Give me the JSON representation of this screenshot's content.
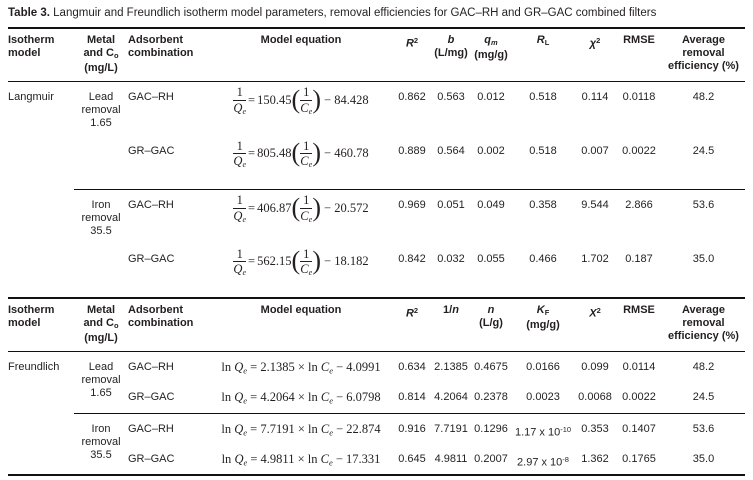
{
  "title": {
    "label": "Table 3.",
    "text": " Langmuir and Freundlich isotherm model parameters, removal efficiencies for GAC–RH and GR–GAC combined filters"
  },
  "shared": {
    "langmuir_eq": {
      "num": "1",
      "den_var": "Q",
      "den_sub": "e",
      "equals": "=",
      "open": "(",
      "inner_num": "1",
      "inner_var": "C",
      "inner_sub": "e",
      "close": ")"
    }
  },
  "langmuir": {
    "section_label": "Langmuir",
    "headers": {
      "isotherm": [
        {
          "t": "Isotherm"
        },
        {
          "v": "br"
        },
        {
          "t": "model"
        }
      ],
      "metal": [
        {
          "t": "Metal"
        },
        {
          "v": "br"
        },
        {
          "t": "and C"
        },
        {
          "t": "o",
          "v": "sub"
        },
        {
          "v": "br"
        },
        {
          "t": "(mg/L)"
        }
      ],
      "adsorbent": [
        {
          "t": "Adsorbent"
        },
        {
          "v": "br"
        },
        {
          "t": "combination"
        }
      ],
      "equation": [
        {
          "t": "Model equation"
        }
      ],
      "c5": [
        {
          "t": "R",
          "v": "i"
        },
        {
          "t": "2",
          "v": "sup"
        }
      ],
      "c6": [
        {
          "t": "b",
          "v": "i"
        },
        {
          "v": "br"
        },
        {
          "t": "(L/mg)"
        }
      ],
      "c7": [
        {
          "t": "q",
          "v": "i"
        },
        {
          "t": "m",
          "v": "isub"
        },
        {
          "v": "br"
        },
        {
          "t": "(mg/g)"
        }
      ],
      "c8": [
        {
          "t": "R",
          "v": "i"
        },
        {
          "t": "L",
          "v": "sub"
        }
      ],
      "c9": [
        {
          "t": "χ",
          "v": "i"
        },
        {
          "t": "2",
          "v": "sup"
        }
      ],
      "c10": [
        {
          "t": "RMSE"
        }
      ],
      "c11": [
        {
          "t": "Average"
        },
        {
          "v": "br"
        },
        {
          "t": "removal"
        },
        {
          "v": "br"
        },
        {
          "t": "efficiency (%)"
        }
      ]
    },
    "groups": [
      {
        "metal": [
          {
            "t": "Lead"
          },
          {
            "v": "br"
          },
          {
            "t": "removal"
          },
          {
            "v": "br"
          },
          {
            "t": "1.65"
          }
        ]
      },
      {
        "metal": [
          {
            "t": "Iron"
          },
          {
            "v": "br"
          },
          {
            "t": "removal"
          },
          {
            "v": "br"
          },
          {
            "t": "35.5"
          }
        ]
      }
    ],
    "rows": [
      {
        "adsorbent": "GAC–RH",
        "coef": "150.45",
        "tail": "− 84.428",
        "r2": "0.862",
        "b": "0.563",
        "qm": "0.012",
        "rl": "0.518",
        "chi2": "0.114",
        "rmse": "0.0118",
        "avg": "48.2"
      },
      {
        "adsorbent": "GR–GAC",
        "coef": "805.48",
        "tail": "− 460.78",
        "r2": "0.889",
        "b": "0.564",
        "qm": "0.002",
        "rl": "0.518",
        "chi2": "0.007",
        "rmse": "0.0022",
        "avg": "24.5"
      },
      {
        "adsorbent": "GAC–RH",
        "coef": "406.87",
        "tail": "− 20.572",
        "r2": "0.969",
        "b": "0.051",
        "qm": "0.049",
        "rl": "0.358",
        "chi2": "9.544",
        "rmse": "2.866",
        "avg": "53.6"
      },
      {
        "adsorbent": "GR–GAC",
        "coef": "562.15",
        "tail": "− 18.182",
        "r2": "0.842",
        "b": "0.032",
        "qm": "0.055",
        "rl": "0.466",
        "chi2": "1.702",
        "rmse": "0.187",
        "avg": "35.0"
      }
    ]
  },
  "freundlich": {
    "section_label": "Freundlich",
    "headers": {
      "isotherm": [
        {
          "t": "Isotherm"
        },
        {
          "v": "br"
        },
        {
          "t": "model"
        }
      ],
      "metal": [
        {
          "t": "Metal"
        },
        {
          "v": "br"
        },
        {
          "t": "and C"
        },
        {
          "t": "o",
          "v": "sub"
        },
        {
          "v": "br"
        },
        {
          "t": "(mg/L)"
        }
      ],
      "adsorbent": [
        {
          "t": "Adsorbent"
        },
        {
          "v": "br"
        },
        {
          "t": "combination"
        }
      ],
      "equation": [
        {
          "t": "Model equation"
        }
      ],
      "c5": [
        {
          "t": "R",
          "v": "i"
        },
        {
          "t": "2",
          "v": "sup"
        }
      ],
      "c6": [
        {
          "t": "1/"
        },
        {
          "t": "n",
          "v": "i"
        }
      ],
      "c7": [
        {
          "t": "n",
          "v": "i"
        },
        {
          "v": "br"
        },
        {
          "t": "(L/g)"
        }
      ],
      "c8": [
        {
          "t": "K",
          "v": "i"
        },
        {
          "t": "F",
          "v": "sub"
        },
        {
          "v": "br"
        },
        {
          "t": "(mg/g)"
        }
      ],
      "c9": [
        {
          "t": "X",
          "v": "i"
        },
        {
          "t": "2",
          "v": "sup"
        }
      ],
      "c10": [
        {
          "t": "RMSE"
        }
      ],
      "c11": [
        {
          "t": "Average"
        },
        {
          "v": "br"
        },
        {
          "t": "removal"
        },
        {
          "v": "br"
        },
        {
          "t": "efficiency (%)"
        }
      ]
    },
    "groups": [
      {
        "metal": [
          {
            "t": "Lead"
          },
          {
            "v": "br"
          },
          {
            "t": "removal"
          },
          {
            "v": "br"
          },
          {
            "t": "1.65"
          }
        ]
      },
      {
        "metal": [
          {
            "t": "Iron"
          },
          {
            "v": "br"
          },
          {
            "t": "removal"
          },
          {
            "v": "br"
          },
          {
            "t": "35.5"
          }
        ]
      }
    ],
    "rows": [
      {
        "adsorbent": "GAC–RH",
        "equation": [
          {
            "t": "ln "
          },
          {
            "t": "Q",
            "v": "i"
          },
          {
            "t": "e",
            "v": "isub"
          },
          {
            "t": " = 2.1385 × ln "
          },
          {
            "t": "C",
            "v": "i"
          },
          {
            "t": "e",
            "v": "isub"
          },
          {
            "t": " − 4.0991"
          }
        ],
        "r2": "0.634",
        "oneovern": "2.1385",
        "n": "0.4675",
        "kf": [
          {
            "t": "0.0166"
          }
        ],
        "chi2": "0.099",
        "rmse": "0.0114",
        "avg": "48.2"
      },
      {
        "adsorbent": "GR–GAC",
        "equation": [
          {
            "t": "ln "
          },
          {
            "t": "Q",
            "v": "i"
          },
          {
            "t": "e",
            "v": "isub"
          },
          {
            "t": " = 4.2064 × ln "
          },
          {
            "t": "C",
            "v": "i"
          },
          {
            "t": "e",
            "v": "isub"
          },
          {
            "t": " − 6.0798"
          }
        ],
        "r2": "0.814",
        "oneovern": "4.2064",
        "n": "0.2378",
        "kf": [
          {
            "t": "0.0023"
          }
        ],
        "chi2": "0.0068",
        "rmse": "0.0022",
        "avg": "24.5"
      },
      {
        "adsorbent": "GAC–RH",
        "equation": [
          {
            "t": "ln "
          },
          {
            "t": "Q",
            "v": "i"
          },
          {
            "t": "e",
            "v": "isub"
          },
          {
            "t": " = 7.7191 × ln "
          },
          {
            "t": "C",
            "v": "i"
          },
          {
            "t": "e",
            "v": "isub"
          },
          {
            "t": " − 22.874"
          }
        ],
        "r2": "0.916",
        "oneovern": "7.7191",
        "n": "0.1296",
        "kf": [
          {
            "t": "1.17 x 10"
          },
          {
            "t": "-10",
            "v": "sup"
          }
        ],
        "chi2": "0.353",
        "rmse": "0.1407",
        "avg": "53.6"
      },
      {
        "adsorbent": "GR–GAC",
        "equation": [
          {
            "t": "ln "
          },
          {
            "t": "Q",
            "v": "i"
          },
          {
            "t": "e",
            "v": "isub"
          },
          {
            "t": " = 4.9811 × ln "
          },
          {
            "t": "C",
            "v": "i"
          },
          {
            "t": "e",
            "v": "isub"
          },
          {
            "t": " − 17.331"
          }
        ],
        "r2": "0.645",
        "oneovern": "4.9811",
        "n": "0.2007",
        "kf": [
          {
            "t": "2.97 x 10"
          },
          {
            "t": "-8",
            "v": "sup"
          }
        ],
        "chi2": "1.362",
        "rmse": "0.1765",
        "avg": "35.0"
      }
    ]
  }
}
